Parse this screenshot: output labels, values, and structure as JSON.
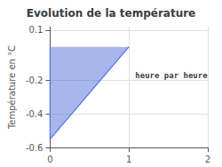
{
  "chart_data": {
    "type": "area",
    "title": "Evolution de la température",
    "ylabel": "Température en °C",
    "annotations": [
      {
        "text": "heure par heure",
        "x": 1.08,
        "y": -0.17
      }
    ],
    "x": [
      0,
      0,
      1
    ],
    "values": [
      0,
      -0.55,
      0
    ],
    "xlim": [
      0,
      2.0
    ],
    "ylim": [
      -0.6,
      0.12
    ],
    "xticks": [
      0,
      1,
      2
    ],
    "yticks": [
      0.1,
      -0.2,
      -0.4,
      -0.6
    ],
    "grid": true
  }
}
